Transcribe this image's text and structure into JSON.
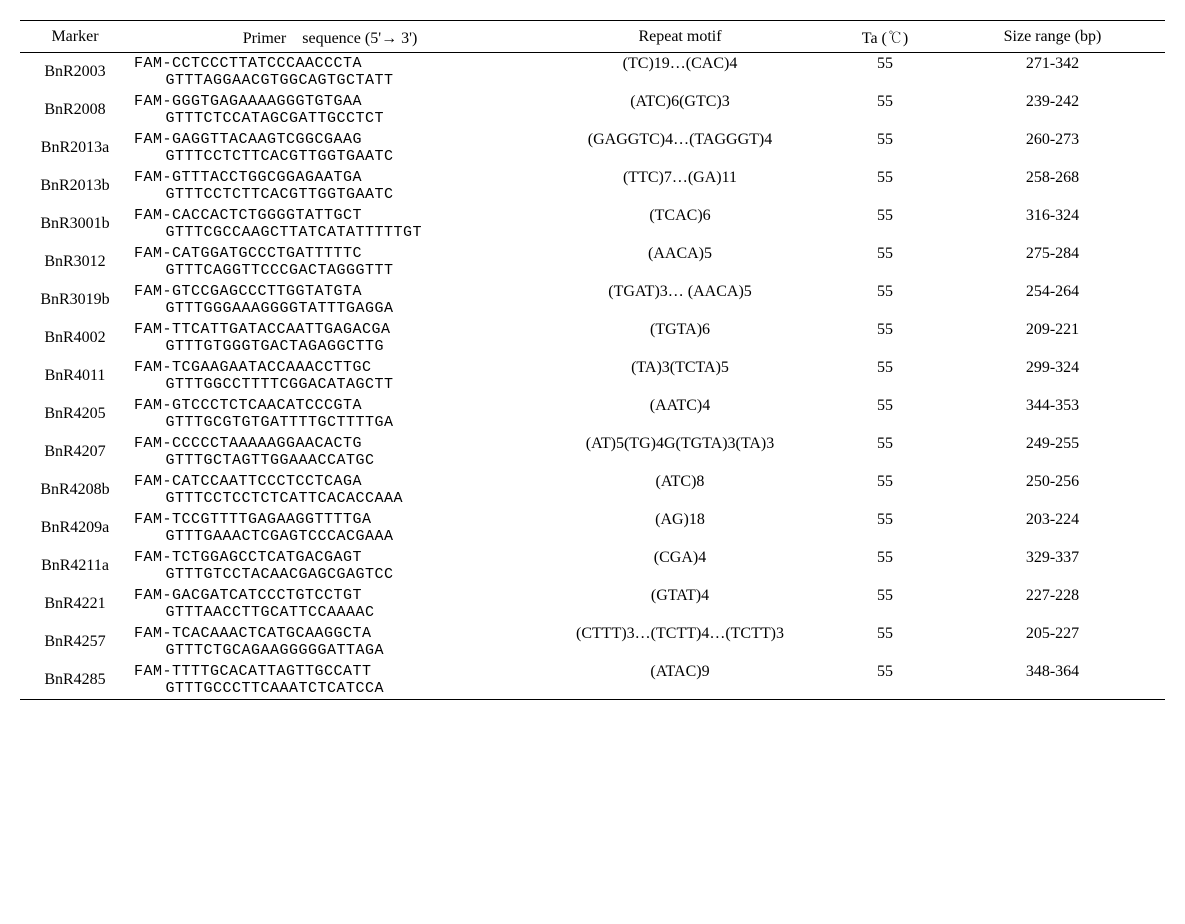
{
  "headers": {
    "marker": "Marker",
    "primer": "Primer　sequence (5'→ 3')",
    "motif": "Repeat motif",
    "ta": "Ta (℃)",
    "size": "Size range (bp)"
  },
  "rows": [
    {
      "marker": "BnR2003",
      "fwd": "FAM-CCTCCCTTATCCCAACCCTA",
      "rev": "GTTTAGGAACGTGGCAGTGCTATT",
      "motif": "(TC)19…(CAC)4",
      "ta": "55",
      "size": "271-342"
    },
    {
      "marker": "BnR2008",
      "fwd": "FAM-GGGTGAGAAAAGGGTGTGAA",
      "rev": "GTTTCTCCATAGCGATTGCCTCT",
      "motif": "(ATC)6(GTC)3",
      "ta": "55",
      "size": "239-242"
    },
    {
      "marker": "BnR2013a",
      "fwd": "FAM-GAGGTTACAAGTCGGCGAAG",
      "rev": "GTTTCCTCTTCACGTTGGTGAATC",
      "motif": "(GAGGTC)4…(TAGGGT)4",
      "ta": "55",
      "size": "260-273"
    },
    {
      "marker": "BnR2013b",
      "fwd": "FAM-GTTTACCTGGCGGAGAATGA",
      "rev": "GTTTCCTCTTCACGTTGGTGAATC",
      "motif": "(TTC)7…(GA)11",
      "ta": "55",
      "size": "258-268"
    },
    {
      "marker": "BnR3001b",
      "fwd": "FAM-CACCACTCTGGGGTATTGCT",
      "rev": "GTTTCGCCAAGCTTATCATATTTTTGT",
      "motif": "(TCAC)6",
      "ta": "55",
      "size": "316-324"
    },
    {
      "marker": "BnR3012",
      "fwd": "FAM-CATGGATGCCCTGATTTTTC",
      "rev": "GTTTCAGGTTCCCGACTAGGGTTT",
      "motif": "(AACA)5",
      "ta": "55",
      "size": "275-284"
    },
    {
      "marker": "BnR3019b",
      "fwd": "FAM-GTCCGAGCCCTTGGTATGTA",
      "rev": "GTTTGGGAAAGGGGTATTTGAGGA",
      "motif": "(TGAT)3… (AACA)5",
      "ta": "55",
      "size": "254-264"
    },
    {
      "marker": "BnR4002",
      "fwd": "FAM-TTCATTGATACCAATTGAGACGA",
      "rev": "GTTTGTGGGTGACTAGAGGCTTG",
      "motif": "(TGTA)6",
      "ta": "55",
      "size": "209-221"
    },
    {
      "marker": "BnR4011",
      "fwd": "FAM-TCGAAGAATACCAAACCTTGC",
      "rev": "GTTTGGCCTTTTCGGACATAGCTT",
      "motif": "(TA)3(TCTA)5",
      "ta": "55",
      "size": "299-324"
    },
    {
      "marker": "BnR4205",
      "fwd": "FAM-GTCCCTCTCAACATCCCGTA",
      "rev": "GTTTGCGTGTGATTTTGCTTTTGA",
      "motif": "(AATC)4",
      "ta": "55",
      "size": "344-353"
    },
    {
      "marker": "BnR4207",
      "fwd": "FAM-CCCCCTAAAAAGGAACACTG",
      "rev": "GTTTGCTAGTTGGAAACCATGC",
      "motif": "(AT)5(TG)4G(TGTA)3(TA)3",
      "ta": "55",
      "size": "249-255"
    },
    {
      "marker": "BnR4208b",
      "fwd": "FAM-CATCCAATTCCCTCCTCAGA",
      "rev": "GTTTCCTCCTCTCATTCACACCAAA",
      "motif": "(ATC)8",
      "ta": "55",
      "size": "250-256"
    },
    {
      "marker": "BnR4209a",
      "fwd": "FAM-TCCGTTTTGAGAAGGTTTTGA",
      "rev": "GTTTGAAACTCGAGTCCCACGAAA",
      "motif": "(AG)18",
      "ta": "55",
      "size": "203-224"
    },
    {
      "marker": "BnR4211a",
      "fwd": "FAM-TCTGGAGCCTCATGACGAGT",
      "rev": "GTTTGTCCTACAACGAGCGAGTCC",
      "motif": "(CGA)4",
      "ta": "55",
      "size": "329-337"
    },
    {
      "marker": "BnR4221",
      "fwd": "FAM-GACGATCATCCCTGTCCTGT",
      "rev": "GTTTAACCTTGCATTCCAAAAC",
      "motif": "(GTAT)4",
      "ta": "55",
      "size": "227-228"
    },
    {
      "marker": "BnR4257",
      "fwd": "FAM-TCACAAACTCATGCAAGGCTA",
      "rev": "GTTTCTGCAGAAGGGGGATTAGA",
      "motif": "(CTTT)3…(TCTT)4…(TCTT)3",
      "ta": "55",
      "size": "205-227"
    },
    {
      "marker": "BnR4285",
      "fwd": "FAM-TTTTGCACATTAGTTGCCATT",
      "rev": "GTTTGCCCTTCAAATCTCATCCA",
      "motif": "(ATAC)9",
      "ta": "55",
      "size": "348-364"
    }
  ]
}
